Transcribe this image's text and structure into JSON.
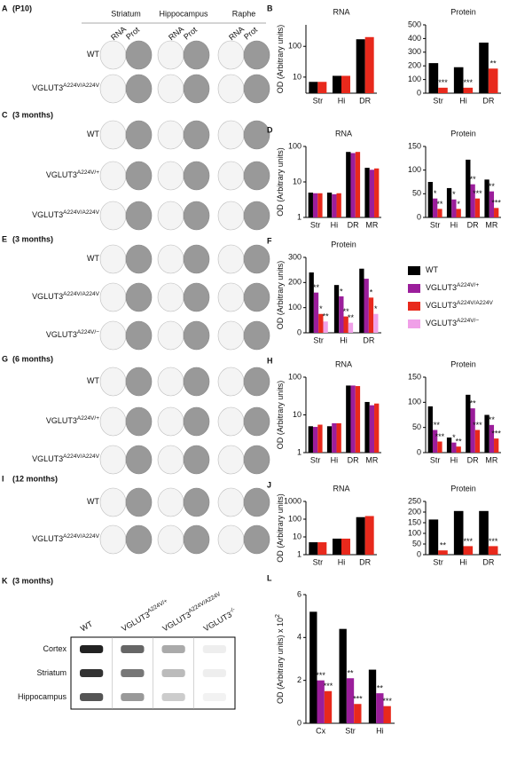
{
  "panels": [
    {
      "letter": "A",
      "subtitle": "(P10)",
      "headers": [
        "Striatum",
        "Hippocampus",
        "Raphe"
      ],
      "subheaders": [
        "RNA",
        "Prot"
      ],
      "rows": [
        {
          "name": "WT"
        },
        {
          "name": "VGLUT3",
          "sup": "A224V/A224V"
        }
      ]
    },
    {
      "letter": "C",
      "subtitle": "(3 months)",
      "rows": [
        {
          "name": "WT"
        },
        {
          "name": "VGLUT3",
          "sup": "A224V/+"
        },
        {
          "name": "VGLUT3",
          "sup": "A224V/A224V"
        }
      ]
    },
    {
      "letter": "E",
      "subtitle": "(3 months)",
      "rows": [
        {
          "name": "WT"
        },
        {
          "name": "VGLUT3",
          "sup": "A224V/A224V"
        },
        {
          "name": "VGLUT3",
          "sup": "A224V/−"
        }
      ]
    },
    {
      "letter": "G",
      "subtitle": "(6 months)",
      "rows": [
        {
          "name": "WT"
        },
        {
          "name": "VGLUT3",
          "sup": "A224V/+"
        },
        {
          "name": "VGLUT3",
          "sup": "A224V/A224V"
        }
      ]
    },
    {
      "letter": "I",
      "subtitle": "(12 months)",
      "rows": [
        {
          "name": "WT"
        },
        {
          "name": "VGLUT3",
          "sup": "A224V/A224V"
        }
      ]
    }
  ],
  "blot": {
    "letter": "K",
    "subtitle": "(3 months)",
    "columns": [
      {
        "name": "WT"
      },
      {
        "name": "VGLUT3",
        "sup": "A224V/+"
      },
      {
        "name": "VGLUT3",
        "sup": "A224V/A224V"
      },
      {
        "name": "VGLUT3",
        "sup": "-/-"
      }
    ],
    "rows": [
      "Cortex",
      "Striatum",
      "Hippocampus"
    ]
  },
  "chart_data": [
    {
      "type": "bar",
      "panel": "B",
      "title": "RNA",
      "y_label": "OD (Arbitrary units)",
      "log": true,
      "ylim": [
        3,
        500
      ],
      "yticks": [
        10,
        100
      ],
      "categories": [
        "Str",
        "Hi",
        "DR"
      ],
      "series": [
        {
          "name": "WT",
          "color": "#000000",
          "values": [
            7,
            11,
            170
          ]
        },
        {
          "name": "VGLUT3",
          "sup": "A224V/A224V",
          "color": "#e8291c",
          "values": [
            7,
            11,
            200
          ]
        }
      ]
    },
    {
      "type": "bar",
      "title": "Protein",
      "ylim": [
        0,
        500
      ],
      "yticks": [
        0,
        100,
        200,
        300,
        400,
        500
      ],
      "categories": [
        "Str",
        "Hi",
        "DR"
      ],
      "series": [
        {
          "name": "WT",
          "color": "#000000",
          "values": [
            220,
            190,
            370
          ]
        },
        {
          "name": "VGLUT3",
          "sup": "A224V/A224V",
          "color": "#e8291c",
          "values": [
            40,
            40,
            180
          ],
          "stars": [
            "***",
            "***",
            "**"
          ]
        }
      ]
    },
    {
      "type": "bar",
      "panel": "D",
      "title": "RNA",
      "y_label": "OD (Arbitrary units)",
      "log": true,
      "ylim": [
        1,
        100
      ],
      "yticks": [
        1,
        10,
        100
      ],
      "categories": [
        "Str",
        "Hi",
        "DR",
        "MR"
      ],
      "series": [
        {
          "name": "WT",
          "color": "#000000",
          "values": [
            5,
            5,
            70,
            25
          ]
        },
        {
          "name": "VGLUT3",
          "sup": "A224V/+",
          "color": "#9b1e9b",
          "values": [
            4.8,
            4.5,
            65,
            22
          ]
        },
        {
          "name": "VGLUT3",
          "sup": "A224V/A224V",
          "color": "#e8291c",
          "values": [
            4.8,
            4.8,
            70,
            24
          ]
        }
      ]
    },
    {
      "type": "bar",
      "title": "Protein",
      "ylim": [
        0,
        150
      ],
      "yticks": [
        0,
        50,
        100,
        150
      ],
      "categories": [
        "Str",
        "Hi",
        "DR",
        "MR"
      ],
      "series": [
        {
          "name": "WT",
          "color": "#000000",
          "values": [
            75,
            62,
            122,
            80
          ]
        },
        {
          "name": "VGLUT3",
          "sup": "A224V/+",
          "color": "#9b1e9b",
          "values": [
            40,
            38,
            70,
            55
          ],
          "stars": [
            "*",
            "*",
            "**",
            "**"
          ]
        },
        {
          "name": "VGLUT3",
          "sup": "A224V/A224V",
          "color": "#e8291c",
          "values": [
            18,
            18,
            40,
            20
          ],
          "stars": [
            "**",
            "*",
            "***",
            "***"
          ]
        }
      ]
    },
    {
      "type": "bar",
      "panel": "F",
      "title": "Protein",
      "y_label": "OD (Arbitrary units)",
      "ylim": [
        0,
        300
      ],
      "yticks": [
        0,
        100,
        200,
        300
      ],
      "categories": [
        "Str",
        "Hi",
        "DR"
      ],
      "legend": "right",
      "series": [
        {
          "name": "WT",
          "color": "#000000",
          "values": [
            240,
            190,
            255
          ]
        },
        {
          "name": "VGLUT3",
          "sup": "A224V/+",
          "color": "#9b1e9b",
          "values": [
            160,
            145,
            215
          ],
          "stars": [
            "**",
            "*",
            null
          ]
        },
        {
          "name": "VGLUT3",
          "sup": "A224V/A224V",
          "color": "#e8291c",
          "values": [
            75,
            65,
            140
          ],
          "stars": [
            "*",
            "**",
            "*"
          ]
        },
        {
          "name": "VGLUT3",
          "sup": "A224V/−",
          "color": "#f0a0e8",
          "values": [
            45,
            40,
            75
          ],
          "stars": [
            "**",
            "**",
            "*"
          ]
        }
      ]
    },
    {
      "type": "bar",
      "panel": "H",
      "title": "RNA",
      "y_label": "OD (Arbitrary units)",
      "log": true,
      "ylim": [
        1,
        100
      ],
      "yticks": [
        1,
        10,
        100
      ],
      "categories": [
        "Str",
        "Hi",
        "DR",
        "MR"
      ],
      "series": [
        {
          "name": "WT",
          "color": "#000000",
          "values": [
            5,
            5,
            60,
            22
          ]
        },
        {
          "name": "VGLUT3",
          "sup": "A224V/+",
          "color": "#9b1e9b",
          "values": [
            4.8,
            6,
            60,
            18
          ]
        },
        {
          "name": "VGLUT3",
          "sup": "A224V/A224V",
          "color": "#e8291c",
          "values": [
            5.5,
            6,
            58,
            20
          ]
        }
      ]
    },
    {
      "type": "bar",
      "title": "Protein",
      "ylim": [
        0,
        150
      ],
      "yticks": [
        0,
        50,
        100,
        150
      ],
      "categories": [
        "Str",
        "Hi",
        "DR",
        "MR"
      ],
      "series": [
        {
          "name": "WT",
          "color": "#000000",
          "values": [
            92,
            30,
            115,
            75
          ]
        },
        {
          "name": "VGLUT3",
          "sup": "A224V/+",
          "color": "#9b1e9b",
          "values": [
            45,
            20,
            88,
            55
          ],
          "stars": [
            "***",
            "*",
            "**",
            "**"
          ]
        },
        {
          "name": "VGLUT3",
          "sup": "A224V/A224V",
          "color": "#e8291c",
          "values": [
            22,
            12,
            45,
            28
          ],
          "stars": [
            "***",
            "**",
            "***",
            "***"
          ]
        }
      ]
    },
    {
      "type": "bar",
      "panel": "J",
      "title": "RNA",
      "y_label": "OD (Arbitrary units)",
      "log": true,
      "ylim": [
        1,
        1000
      ],
      "yticks": [
        1,
        10,
        100,
        1000
      ],
      "categories": [
        "Str",
        "Hi",
        "DR"
      ],
      "series": [
        {
          "name": "WT",
          "color": "#000000",
          "values": [
            5,
            8,
            130
          ]
        },
        {
          "name": "VGLUT3",
          "sup": "A224V/A224V",
          "color": "#e8291c",
          "values": [
            5,
            8,
            150
          ]
        }
      ]
    },
    {
      "type": "bar",
      "title": "Protein",
      "ylim": [
        0,
        250
      ],
      "yticks": [
        0,
        50,
        100,
        150,
        200,
        250
      ],
      "categories": [
        "Str",
        "Hi",
        "DR"
      ],
      "series": [
        {
          "name": "WT",
          "color": "#000000",
          "values": [
            165,
            205,
            205
          ]
        },
        {
          "name": "VGLUT3",
          "sup": "A224V/A224V",
          "color": "#e8291c",
          "values": [
            20,
            40,
            40
          ],
          "stars": [
            "**",
            "***",
            "***"
          ]
        }
      ]
    },
    {
      "type": "bar",
      "panel": "L",
      "y_label": "OD (Arbitrary units) x 10",
      "y_label_sup": "2",
      "ylim": [
        0,
        6
      ],
      "yticks": [
        0,
        2,
        4,
        6
      ],
      "categories": [
        "Cx",
        "Str",
        "Hi"
      ],
      "series": [
        {
          "name": "WT",
          "color": "#000000",
          "values": [
            5.2,
            4.4,
            2.5
          ]
        },
        {
          "name": "VGLUT3",
          "sup": "A224V/+",
          "color": "#9b1e9b",
          "values": [
            2.0,
            2.1,
            1.4
          ],
          "stars": [
            "***",
            "**",
            "**"
          ]
        },
        {
          "name": "VGLUT3",
          "sup": "A224V/A224V",
          "color": "#e8291c",
          "values": [
            1.5,
            0.9,
            0.8
          ],
          "stars": [
            "***",
            "***",
            "***"
          ]
        }
      ]
    }
  ]
}
